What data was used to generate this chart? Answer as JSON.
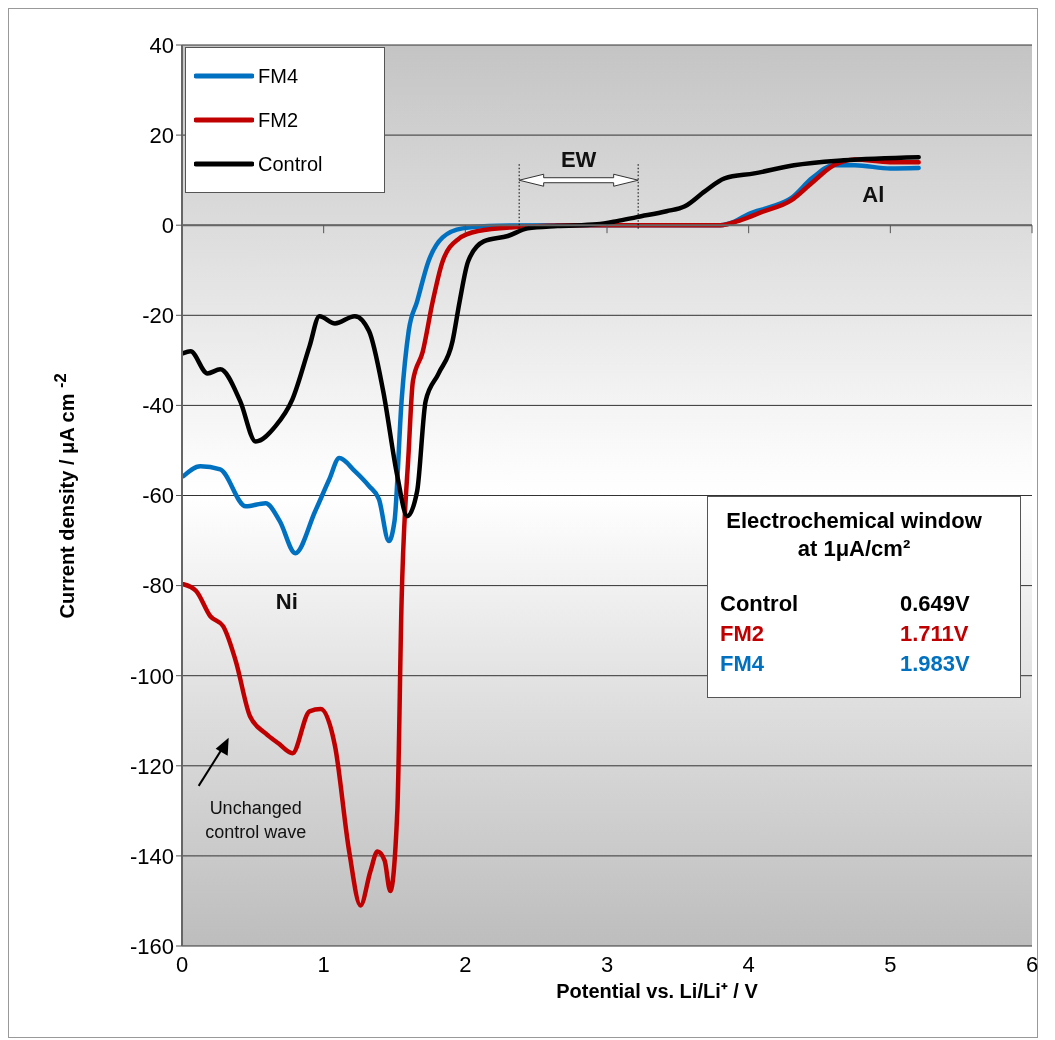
{
  "chart_data": {
    "type": "line",
    "xlabel": "Potential  vs.  Li/Li⁺ /  V",
    "ylabel": "Current density / μA cm $^{-2}$",
    "xlim": [
      0,
      6
    ],
    "xticks": [
      0,
      1,
      2,
      3,
      4,
      5,
      6
    ],
    "ylim": [
      -160,
      40
    ],
    "yticks": [
      -160,
      -140,
      -120,
      -100,
      -80,
      -60,
      -40,
      -20,
      0,
      20,
      40
    ],
    "grid": "y",
    "legend": "top left",
    "marker": "none",
    "line_style": "solid",
    "series": [
      {
        "name": "FM4",
        "color": "#0070c0",
        "x": [
          0.01,
          0.13,
          0.27,
          0.45,
          0.59,
          0.69,
          0.8,
          0.94,
          1.04,
          1.11,
          1.22,
          1.32,
          1.39,
          1.46,
          1.5,
          1.55,
          1.6,
          1.66,
          1.74,
          1.84,
          1.98,
          2.23,
          2.8,
          3.4,
          3.8,
          3.9,
          4.0,
          4.15,
          4.3,
          4.45,
          4.6,
          4.75,
          5.0,
          5.2
        ],
        "values": [
          -55.7,
          -53.5,
          -54.2,
          -62.4,
          -61.7,
          -65.7,
          -72.8,
          -63.5,
          -56.4,
          -51.7,
          -54.6,
          -57.9,
          -60.8,
          -70.1,
          -65.7,
          -39,
          -23.5,
          -16.9,
          -8,
          -2.7,
          -0.7,
          -0.1,
          0,
          0,
          0,
          0.8,
          2.5,
          4,
          6,
          10.5,
          13.3,
          13.3,
          12.6,
          12.7
        ]
      },
      {
        "name": "FM2",
        "color": "#c00000",
        "x": [
          0.01,
          0.1,
          0.2,
          0.29,
          0.38,
          0.48,
          0.59,
          0.68,
          0.78,
          0.9,
          0.98,
          1.08,
          1.18,
          1.26,
          1.33,
          1.38,
          1.43,
          1.47,
          1.52,
          1.55,
          1.6,
          1.63,
          1.7,
          1.77,
          1.84,
          1.95,
          2.09,
          2.37,
          2.8,
          3.4,
          3.8,
          3.95,
          4.1,
          4.3,
          4.45,
          4.6,
          4.75,
          5.0,
          5.2
        ],
        "values": [
          -79.7,
          -81.2,
          -86.8,
          -89,
          -96.8,
          -109,
          -112.8,
          -115,
          -117.2,
          -107.9,
          -107.4,
          -115.6,
          -139,
          -151,
          -143.4,
          -139,
          -141,
          -147.8,
          -130,
          -83.5,
          -50.2,
          -34.6,
          -28,
          -16.9,
          -8,
          -3.1,
          -1.3,
          -0.4,
          0,
          0,
          0,
          1.2,
          3,
          5.5,
          9.5,
          13.3,
          14.6,
          14,
          14
        ]
      },
      {
        "name": "Control",
        "color": "#000000",
        "x": [
          0.01,
          0.06,
          0.18,
          0.27,
          0.41,
          0.52,
          0.66,
          0.78,
          0.9,
          0.97,
          1.08,
          1.22,
          1.32,
          1.42,
          1.52,
          1.59,
          1.66,
          1.72,
          1.81,
          1.91,
          1.96,
          2.02,
          2.13,
          2.3,
          2.44,
          2.65,
          2.93,
          3.07,
          3.21,
          3.42,
          3.55,
          3.69,
          3.83,
          4.04,
          4.32,
          4.67,
          5.2
        ],
        "values": [
          -28.4,
          -28,
          -32.9,
          -32,
          -39,
          -48,
          -44.6,
          -38.6,
          -26.9,
          -20.2,
          -21.8,
          -20.2,
          -23.5,
          -36.8,
          -55.7,
          -64.6,
          -59,
          -39,
          -33,
          -25.7,
          -16.9,
          -8,
          -3.6,
          -2.4,
          -0.7,
          -0.2,
          0.2,
          0.9,
          1.8,
          3.1,
          4.2,
          7.5,
          10.4,
          11.5,
          13.3,
          14.4,
          15.1
        ]
      }
    ],
    "annotations": [
      "Ni",
      "Al",
      "EW",
      "Unchanged control wave",
      "Electrochemical window at 1μA/cm²",
      "Control 0.649V",
      "FM2 1.711V",
      "FM4 1.983V"
    ]
  }
}
